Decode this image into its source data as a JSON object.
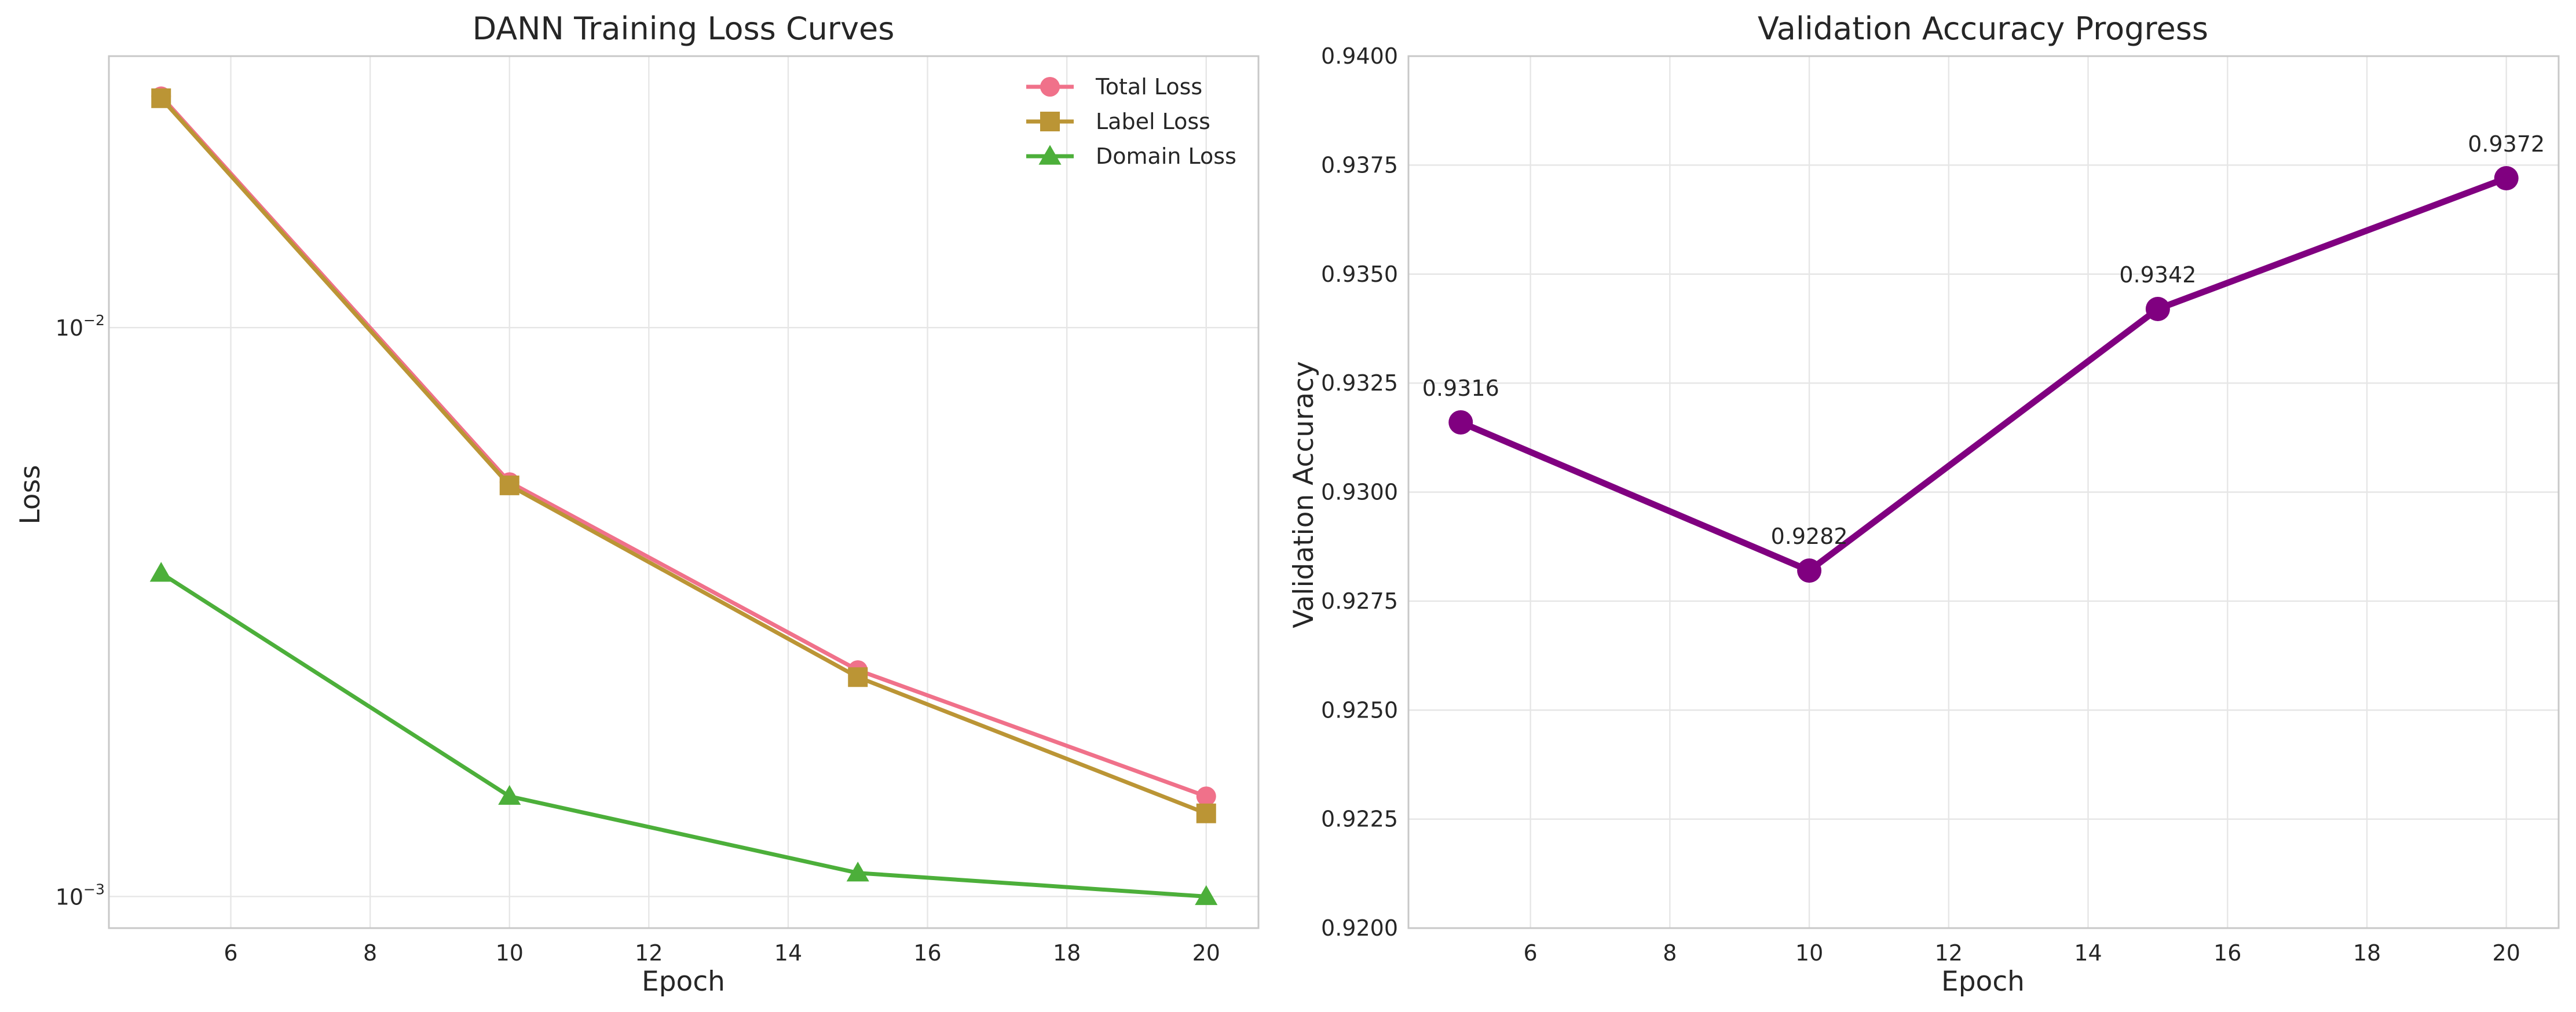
{
  "chart_data": [
    {
      "type": "line",
      "title": "DANN Training Loss Curves",
      "xlabel": "Epoch",
      "ylabel": "Loss",
      "yscale": "log",
      "xlim": [
        4.25,
        20.75
      ],
      "ylim": [
        0.00088,
        0.03
      ],
      "xticks": [
        6,
        8,
        10,
        12,
        14,
        16,
        18,
        20
      ],
      "yticks": [
        {
          "value": 0.001,
          "base": "10",
          "exp": "−3"
        },
        {
          "value": 0.01,
          "base": "10",
          "exp": "−2"
        }
      ],
      "grid": true,
      "legend_position": "top-right",
      "x": [
        5,
        10,
        15,
        20
      ],
      "series": [
        {
          "name": "Total Loss",
          "values": [
            0.0255,
            0.00535,
            0.0025,
            0.0015
          ],
          "color": "#f0718a",
          "marker": "circle"
        },
        {
          "name": "Label Loss",
          "values": [
            0.0253,
            0.00528,
            0.00243,
            0.0014
          ],
          "color": "#bb9535",
          "marker": "square"
        },
        {
          "name": "Domain Loss",
          "values": [
            0.0037,
            0.0015,
            0.0011,
            0.001
          ],
          "color": "#4caf3a",
          "marker": "triangle"
        }
      ]
    },
    {
      "type": "line",
      "title": "Validation Accuracy Progress",
      "xlabel": "Epoch",
      "ylabel": "Validation Accuracy",
      "xlim": [
        4.25,
        20.75
      ],
      "ylim": [
        0.92,
        0.94
      ],
      "xticks": [
        6,
        8,
        10,
        12,
        14,
        16,
        18,
        20
      ],
      "yticks": [
        "0.9200",
        "0.9225",
        "0.9250",
        "0.9275",
        "0.9300",
        "0.9325",
        "0.9350",
        "0.9375",
        "0.9400"
      ],
      "grid": true,
      "x": [
        5,
        10,
        15,
        20
      ],
      "series": [
        {
          "name": "",
          "values": [
            0.9316,
            0.9282,
            0.9342,
            0.9372
          ],
          "color": "#800080",
          "marker": "circle"
        }
      ],
      "annotations": [
        "0.9316",
        "0.9282",
        "0.9342",
        "0.9372"
      ]
    }
  ]
}
